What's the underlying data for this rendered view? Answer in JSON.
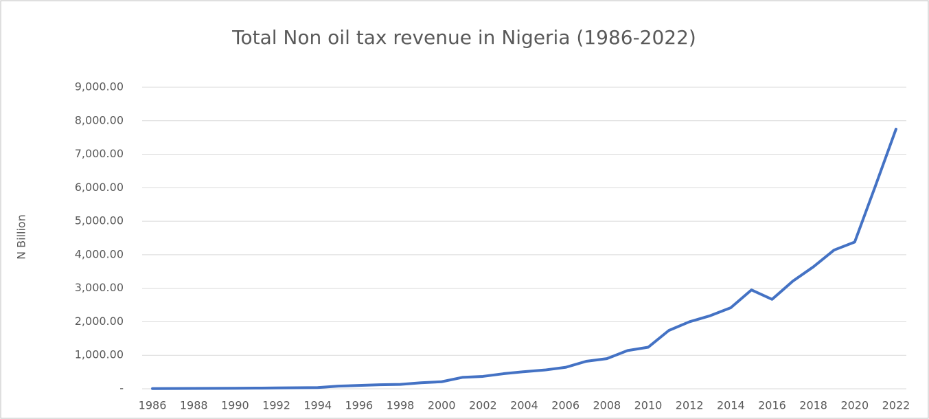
{
  "chart_data": {
    "type": "line",
    "title": "Total Non oil tax revenue in Nigeria (1986-2022)",
    "y_label": "N Billion",
    "categories": [
      "1986",
      null,
      "1988",
      null,
      "1990",
      null,
      "1992",
      null,
      "1994",
      null,
      "1996",
      null,
      "1998",
      null,
      "2000",
      null,
      "2002",
      null,
      "2004",
      null,
      "2006",
      null,
      "2008",
      null,
      "2010",
      null,
      "2012",
      null,
      "2014",
      null,
      "2016",
      null,
      "2018",
      null,
      "2020",
      null,
      "2022"
    ],
    "values": [
      5,
      8,
      10,
      12,
      15,
      20,
      25,
      30,
      35,
      80,
      100,
      120,
      130,
      180,
      210,
      340,
      370,
      450,
      510,
      560,
      640,
      820,
      900,
      1140,
      1240,
      1740,
      2000,
      2180,
      2420,
      2950,
      2670,
      3210,
      3640,
      4140,
      4380,
      6050,
      7750
    ],
    "color": "#4472c4",
    "ylim": [
      0,
      9000
    ],
    "yticks": [
      {
        "value": 0,
        "label": "-"
      },
      {
        "value": 1000,
        "label": "1,000.00"
      },
      {
        "value": 2000,
        "label": "2,000.00"
      },
      {
        "value": 3000,
        "label": "3,000.00"
      },
      {
        "value": 4000,
        "label": "4,000.00"
      },
      {
        "value": 5000,
        "label": "5,000.00"
      },
      {
        "value": 6000,
        "label": "6,000.00"
      },
      {
        "value": 7000,
        "label": "7,000.00"
      },
      {
        "value": 8000,
        "label": "8,000.00"
      },
      {
        "value": 9000,
        "label": "9,000.00"
      }
    ],
    "grid": true
  }
}
